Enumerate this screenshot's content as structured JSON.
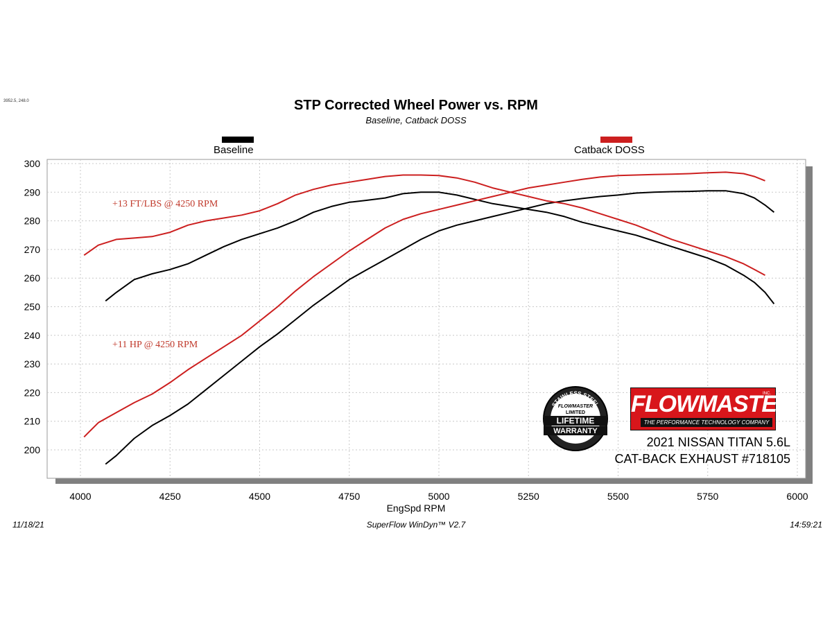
{
  "corner_readout": "3952.5, 248.0",
  "footer": {
    "date": "11/18/21",
    "software": "SuperFlow WinDyn™ V2.7",
    "time": "14:59:21"
  },
  "annotations": {
    "torque_gain": "+13 FT/LBS @ 4250 RPM",
    "hp_gain": "+11 HP @ 4250 RPM"
  },
  "vehicle": {
    "line1": "2021 NISSAN TITAN 5.6L",
    "line2": "CAT-BACK EXHAUST #718105"
  },
  "logo": {
    "brand": "FLOWMASTER",
    "tagline": "THE PERFORMANCE TECHNOLOGY COMPANY",
    "inc": "INC."
  },
  "badge": {
    "top": "STAINLESS STEEL",
    "brand": "FLOWMASTER",
    "limited": "LIMITED",
    "line1": "LIFETIME",
    "line2": "WARRANTY"
  },
  "colors": {
    "baseline": "#000000",
    "catback": "#cc1f1f",
    "grid": "#c8c8c8",
    "shadow": "#808080"
  },
  "chart_data": {
    "type": "line",
    "title": "STP Corrected Wheel Power vs. RPM",
    "subtitle": "Baseline, Catback DOSS",
    "xlabel": "EngSpd  RPM",
    "ylabel": "",
    "xlim": [
      4000,
      6000
    ],
    "ylim": [
      192,
      302
    ],
    "xticks": [
      4000,
      4250,
      4500,
      4750,
      5000,
      5250,
      5500,
      5750,
      6000
    ],
    "yticks": [
      200,
      210,
      220,
      230,
      240,
      250,
      260,
      270,
      280,
      290,
      300
    ],
    "grid": true,
    "legend_position": "top",
    "series": [
      {
        "name": "Baseline",
        "color": "#000000",
        "curve": "torque",
        "x": [
          4070,
          4100,
          4150,
          4200,
          4250,
          4300,
          4350,
          4400,
          4450,
          4500,
          4550,
          4600,
          4650,
          4700,
          4750,
          4800,
          4850,
          4900,
          4950,
          5000,
          5050,
          5100,
          5150,
          5200,
          5250,
          5300,
          5350,
          5400,
          5450,
          5500,
          5550,
          5600,
          5650,
          5700,
          5750,
          5800,
          5850,
          5880,
          5910,
          5935
        ],
        "y": [
          252,
          255,
          259.5,
          261.5,
          263,
          265,
          268,
          271,
          273.5,
          275.5,
          277.5,
          280,
          283,
          285,
          286.5,
          287.2,
          288,
          289.5,
          290,
          290,
          289,
          287.5,
          286,
          285,
          284,
          283,
          281.5,
          279.5,
          278,
          276.5,
          275,
          273,
          271,
          269,
          267,
          264.5,
          261,
          258.5,
          255,
          251
        ]
      },
      {
        "name": "Baseline",
        "color": "#000000",
        "curve": "power",
        "x": [
          4070,
          4100,
          4150,
          4200,
          4250,
          4300,
          4350,
          4400,
          4450,
          4500,
          4550,
          4600,
          4650,
          4700,
          4750,
          4800,
          4850,
          4900,
          4950,
          5000,
          5050,
          5100,
          5150,
          5200,
          5250,
          5300,
          5350,
          5400,
          5450,
          5500,
          5550,
          5600,
          5650,
          5700,
          5750,
          5800,
          5850,
          5880,
          5910,
          5935
        ],
        "y": [
          195,
          198,
          204,
          208.5,
          212,
          216,
          221,
          226,
          231,
          236,
          240.5,
          245.5,
          250.5,
          255,
          259.5,
          263,
          266.5,
          270,
          273.5,
          276.5,
          278.5,
          280,
          281.5,
          283,
          284.5,
          286,
          287,
          287.8,
          288.5,
          289,
          289.7,
          290,
          290.2,
          290.3,
          290.5,
          290.5,
          289.5,
          288,
          285.5,
          283
        ]
      },
      {
        "name": "Catback DOSS",
        "color": "#cc1f1f",
        "curve": "torque",
        "x": [
          4010,
          4050,
          4100,
          4150,
          4200,
          4250,
          4300,
          4350,
          4400,
          4450,
          4500,
          4550,
          4600,
          4650,
          4700,
          4750,
          4800,
          4850,
          4900,
          4950,
          5000,
          5050,
          5100,
          5150,
          5200,
          5250,
          5300,
          5350,
          5400,
          5450,
          5500,
          5550,
          5600,
          5650,
          5700,
          5750,
          5800,
          5850,
          5880,
          5910
        ],
        "y": [
          268,
          271.5,
          273.5,
          274,
          274.5,
          276,
          278.5,
          280,
          281,
          282,
          283.5,
          286,
          289,
          291,
          292.5,
          293.5,
          294.5,
          295.5,
          296,
          296,
          295.8,
          295,
          293.5,
          291.5,
          290,
          288.5,
          287,
          286,
          284.5,
          282.5,
          280.5,
          278.5,
          276,
          273.5,
          271.5,
          269.5,
          267.5,
          265,
          263,
          261
        ]
      },
      {
        "name": "Catback DOSS",
        "color": "#cc1f1f",
        "curve": "power",
        "x": [
          4010,
          4050,
          4100,
          4150,
          4200,
          4250,
          4300,
          4350,
          4400,
          4450,
          4500,
          4550,
          4600,
          4650,
          4700,
          4750,
          4800,
          4850,
          4900,
          4950,
          5000,
          5050,
          5100,
          5150,
          5200,
          5250,
          5300,
          5350,
          5400,
          5450,
          5500,
          5550,
          5600,
          5650,
          5700,
          5750,
          5800,
          5850,
          5880,
          5910
        ],
        "y": [
          204.5,
          209.5,
          213,
          216.5,
          219.5,
          223.5,
          228,
          232,
          236,
          240,
          245,
          250,
          255.5,
          260.5,
          265,
          269.5,
          273.5,
          277.5,
          280.5,
          282.5,
          284,
          285.5,
          287,
          288.5,
          290,
          291.5,
          292.5,
          293.5,
          294.5,
          295.3,
          295.8,
          296,
          296.2,
          296.3,
          296.5,
          296.8,
          297,
          296.5,
          295.5,
          294
        ]
      }
    ]
  }
}
